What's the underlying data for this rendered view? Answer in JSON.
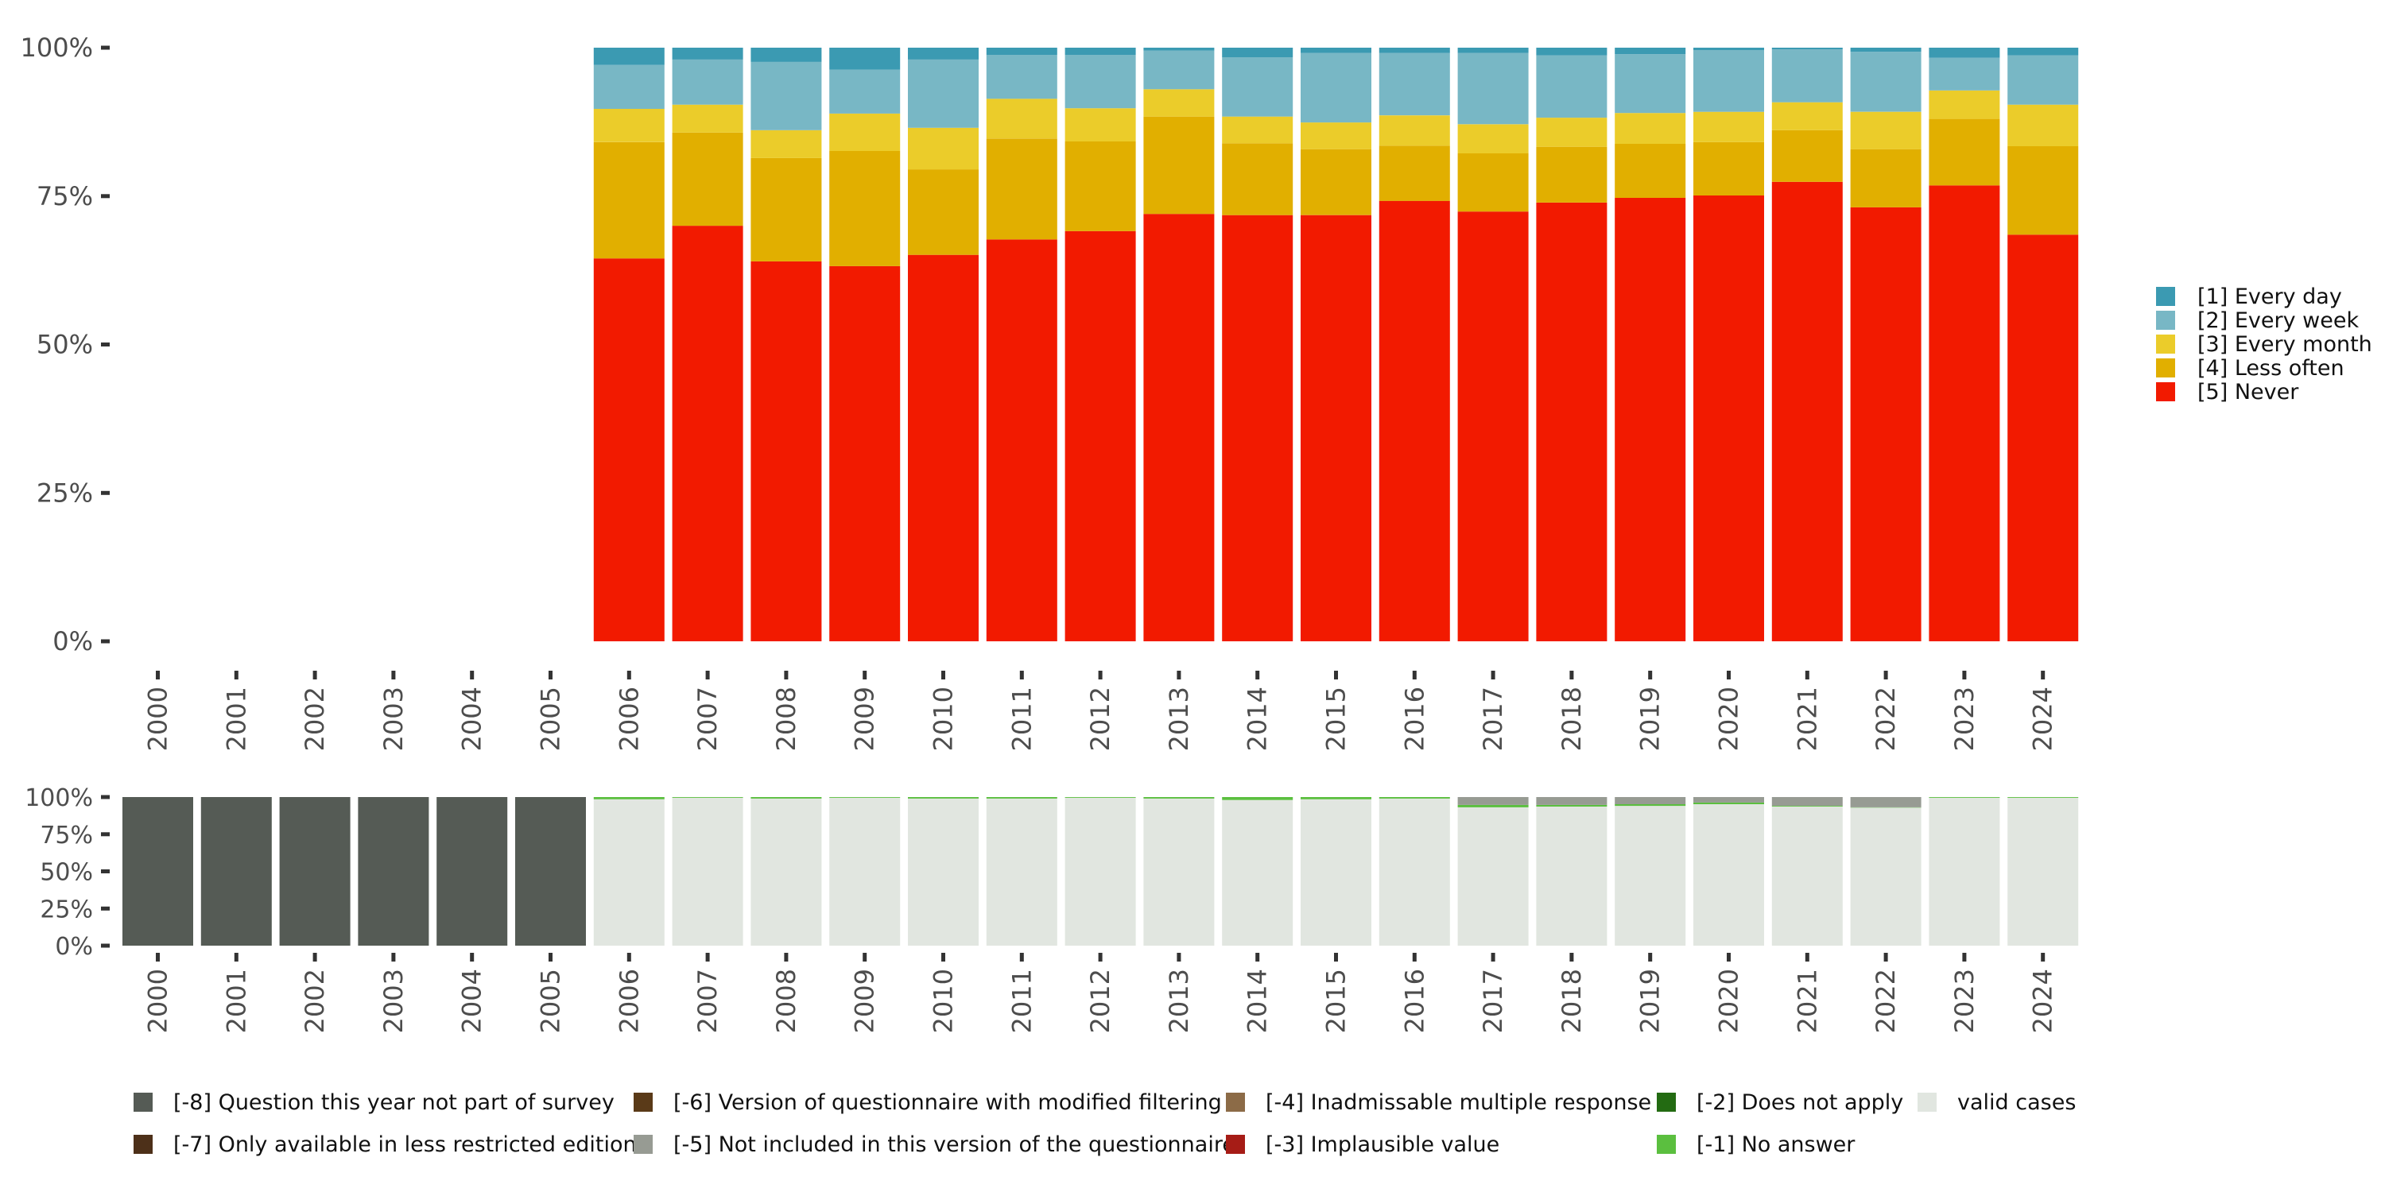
{
  "chart_data": [
    {
      "type": "bar",
      "stacked": true,
      "title": "",
      "xlabel": "",
      "ylabel": "",
      "ylim": [
        0,
        100
      ],
      "y_ticks": [
        "0%",
        "25%",
        "50%",
        "75%",
        "100%"
      ],
      "y_tick_values": [
        0,
        25,
        50,
        75,
        100
      ],
      "grid": false,
      "legend_position": "right",
      "categories": [
        "2000",
        "2001",
        "2002",
        "2003",
        "2004",
        "2005",
        "2006",
        "2007",
        "2008",
        "2009",
        "2010",
        "2011",
        "2012",
        "2013",
        "2014",
        "2015",
        "2016",
        "2017",
        "2018",
        "2019",
        "2020",
        "2021",
        "2022",
        "2023",
        "2024"
      ],
      "series": [
        {
          "name": "[5] Never",
          "color": "#f21a00",
          "values": [
            null,
            null,
            null,
            null,
            null,
            null,
            64.5,
            70.0,
            64.0,
            63.2,
            65.1,
            67.7,
            69.1,
            72.0,
            71.8,
            71.8,
            74.2,
            72.4,
            73.9,
            74.7,
            75.1,
            77.4,
            73.1,
            76.8,
            68.5
          ]
        },
        {
          "name": "[4] Less often",
          "color": "#e1af00",
          "values": [
            null,
            null,
            null,
            null,
            null,
            null,
            19.6,
            15.7,
            17.4,
            19.4,
            14.4,
            17.0,
            15.1,
            16.4,
            12.1,
            11.1,
            9.3,
            9.8,
            9.4,
            9.1,
            9.0,
            8.7,
            9.8,
            11.2,
            14.9
          ]
        },
        {
          "name": "[3] Every month",
          "color": "#ebcc2a",
          "values": [
            null,
            null,
            null,
            null,
            null,
            null,
            5.6,
            4.7,
            4.7,
            6.3,
            7.0,
            6.7,
            5.6,
            4.6,
            4.5,
            4.5,
            5.1,
            4.9,
            4.9,
            5.2,
            5.1,
            4.7,
            6.3,
            4.8,
            7.0
          ]
        },
        {
          "name": "[2] Every week",
          "color": "#78b7c5",
          "values": [
            null,
            null,
            null,
            null,
            null,
            null,
            7.4,
            7.6,
            11.5,
            7.4,
            11.5,
            7.4,
            9.0,
            6.5,
            10.0,
            11.7,
            10.5,
            12.0,
            10.5,
            9.9,
            10.4,
            8.9,
            10.1,
            5.5,
            8.3
          ]
        },
        {
          "name": "[1] Every day",
          "color": "#3b9ab2",
          "values": [
            null,
            null,
            null,
            null,
            null,
            null,
            2.9,
            2.0,
            2.4,
            3.7,
            2.0,
            1.2,
            1.2,
            0.5,
            1.6,
            0.9,
            0.9,
            0.9,
            1.3,
            1.1,
            0.4,
            0.3,
            0.7,
            1.7,
            1.3
          ]
        }
      ],
      "legend": [
        {
          "label": "[1] Every day",
          "color": "#3b9ab2"
        },
        {
          "label": "[2] Every week",
          "color": "#78b7c5"
        },
        {
          "label": "[3] Every month",
          "color": "#ebcc2a"
        },
        {
          "label": "[4] Less often",
          "color": "#e1af00"
        },
        {
          "label": "[5] Never",
          "color": "#f21a00"
        }
      ]
    },
    {
      "type": "bar",
      "stacked": true,
      "title": "",
      "xlabel": "",
      "ylabel": "",
      "ylim": [
        0,
        100
      ],
      "y_ticks": [
        "0%",
        "25%",
        "50%",
        "75%",
        "100%"
      ],
      "y_tick_values": [
        0,
        25,
        50,
        75,
        100
      ],
      "grid": false,
      "legend_position": "bottom",
      "categories": [
        "2000",
        "2001",
        "2002",
        "2003",
        "2004",
        "2005",
        "2006",
        "2007",
        "2008",
        "2009",
        "2010",
        "2011",
        "2012",
        "2013",
        "2014",
        "2015",
        "2016",
        "2017",
        "2018",
        "2019",
        "2020",
        "2021",
        "2022",
        "2023",
        "2024"
      ],
      "series": [
        {
          "name": "valid cases",
          "color": "#e1e6e0",
          "values": [
            0,
            0,
            0,
            0,
            0,
            0,
            98.5,
            99.5,
            99.0,
            99.5,
            99.0,
            99.0,
            99.5,
            99.0,
            98.0,
            98.5,
            99.0,
            93.1,
            93.6,
            94.1,
            95.2,
            93.6,
            92.9,
            99.5,
            99.5
          ]
        },
        {
          "name": "[-1] No answer",
          "color": "#5bbf3f",
          "values": [
            0,
            0,
            0,
            0,
            0,
            0,
            1.5,
            0.5,
            1.0,
            0.5,
            1.0,
            1.0,
            0.5,
            1.0,
            2.0,
            1.5,
            1.0,
            1.6,
            1.1,
            1.1,
            1.1,
            0.5,
            0.2,
            0.5,
            0.5
          ]
        },
        {
          "name": "[-5] Not included in this version of the questionnaire",
          "color": "#979b93",
          "values": [
            0,
            0,
            0,
            0,
            0,
            0,
            0,
            0,
            0,
            0,
            0,
            0,
            0,
            0,
            0,
            0,
            0,
            5.3,
            5.3,
            4.8,
            3.7,
            5.9,
            6.9,
            0,
            0
          ]
        },
        {
          "name": "[-8] Question this year not part of survey",
          "color": "#555b55",
          "values": [
            100,
            100,
            100,
            100,
            100,
            100,
            0,
            0,
            0,
            0,
            0,
            0,
            0,
            0,
            0,
            0,
            0,
            0,
            0,
            0,
            0,
            0,
            0,
            0,
            0
          ]
        }
      ],
      "legend": [
        {
          "label": "[-8] Question this year not part of survey",
          "color": "#555b55"
        },
        {
          "label": "[-7] Only available in less restricted edition",
          "color": "#4d3019"
        },
        {
          "label": "[-6] Version of questionnaire with modified filtering",
          "color": "#5a3a18"
        },
        {
          "label": "[-5] Not included in this version of the questionnaire",
          "color": "#979b93"
        },
        {
          "label": "[-4] Inadmissable multiple response",
          "color": "#8c6b47"
        },
        {
          "label": "[-3] Implausible value",
          "color": "#a61c16"
        },
        {
          "label": "[-2] Does not apply",
          "color": "#236b12"
        },
        {
          "label": "[-1] No answer",
          "color": "#5bbf3f"
        },
        {
          "label": "valid cases",
          "color": "#e1e6e0"
        }
      ]
    }
  ]
}
